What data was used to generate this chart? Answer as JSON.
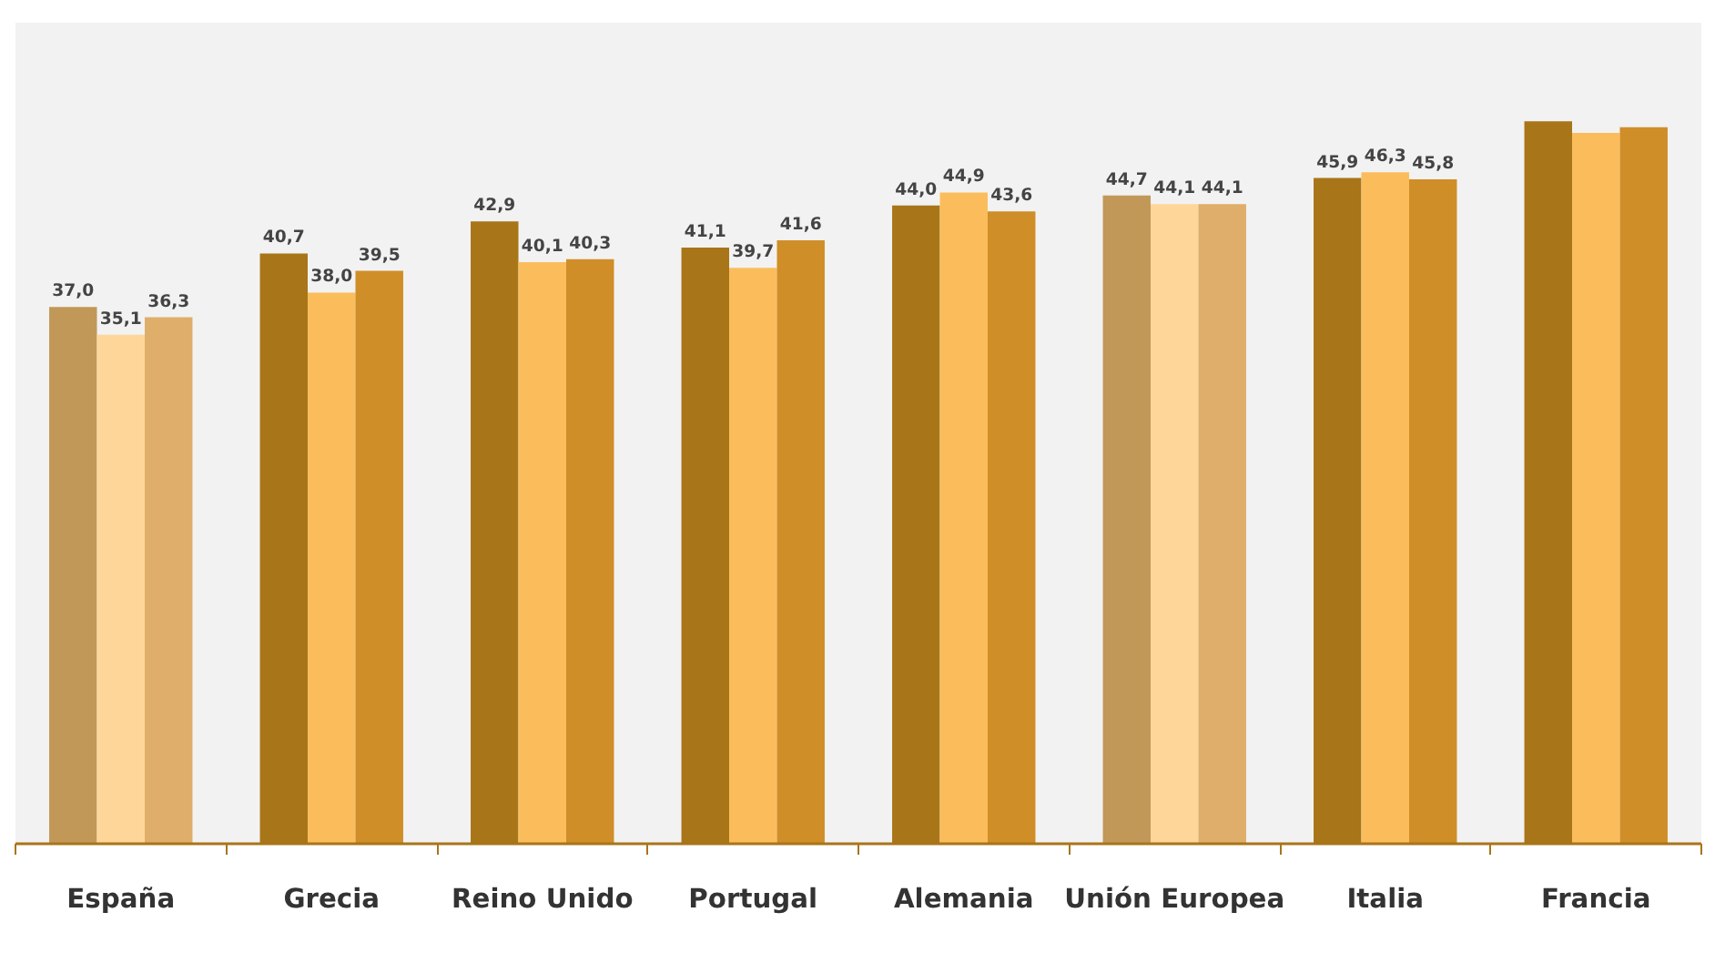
{
  "chart_data": {
    "type": "bar",
    "categories": [
      "España",
      "Grecia",
      "Reino Unido",
      "Portugal",
      "Alemania",
      "Unión Europea",
      "Italia",
      "Francia"
    ],
    "ylim": [
      0,
      56.6
    ],
    "series": [
      {
        "colors": [
          "#c29858",
          "#a87519",
          "#a87519",
          "#a87519",
          "#a87519",
          "#c29858",
          "#a87519",
          "#a87519"
        ],
        "values": [
          37.0,
          40.7,
          42.9,
          41.1,
          44.0,
          44.7,
          45.9,
          49.8
        ],
        "value_labels": [
          "37,0",
          "40,7",
          "42,9",
          "41,1",
          "44,0",
          "44,7",
          "45,9",
          null
        ]
      },
      {
        "colors": [
          "#fed699",
          "#fbbd5c",
          "#fbbd5c",
          "#fbbd5c",
          "#fbbd5c",
          "#fed699",
          "#fbbd5c",
          "#fbbd5c"
        ],
        "values": [
          35.1,
          38.0,
          40.1,
          39.7,
          44.9,
          44.1,
          46.3,
          49.0
        ],
        "value_labels": [
          "35,1",
          "38,0",
          "40,1",
          "39,7",
          "44,9",
          "44,1",
          "46,3",
          null
        ]
      },
      {
        "colors": [
          "#dfae6a",
          "#d08e28",
          "#d08e28",
          "#d08e28",
          "#d08e28",
          "#dfae6a",
          "#d08e28",
          "#d08e28"
        ],
        "values": [
          36.3,
          39.5,
          40.3,
          41.6,
          43.6,
          44.1,
          45.8,
          49.4
        ],
        "value_labels": [
          "36,3",
          "39,5",
          "40,3",
          "41,6",
          "43,6",
          "44,1",
          "45,8",
          null
        ]
      }
    ],
    "grid": false,
    "tick_labels": "x"
  }
}
